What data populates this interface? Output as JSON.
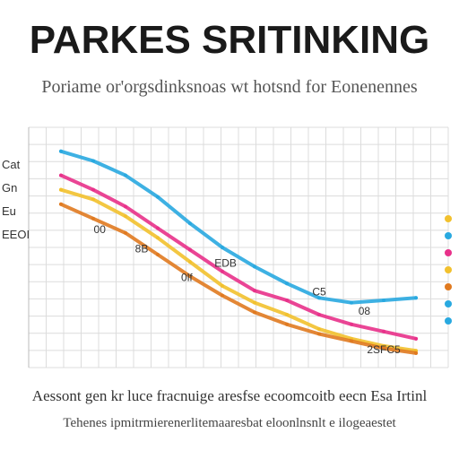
{
  "title": "PARKES SRITINKING",
  "subtitle": "Poriame or'orgsdinksnoas wt hotsnd for Eonenennes",
  "footer": {
    "line1": "Aessont gen kr luce fracnuige aresfse ecoomcoitb eecn Esa Irtinl",
    "line2": "Tehenes ipmitrmierenerlitemaaresbat eloonlnsnlt e ilogeaestet"
  },
  "chart_data": {
    "type": "line",
    "x": [
      1,
      2,
      3,
      4,
      5,
      6,
      7,
      8,
      9,
      10,
      11,
      12
    ],
    "xlim": [
      0,
      13
    ],
    "ylim": [
      0,
      100
    ],
    "grid": true,
    "legend_position": "right",
    "ylabels": [
      "Cat",
      "Gn",
      "Eu",
      "EEOI"
    ],
    "series": [
      {
        "color": "#29a9e0",
        "values": [
          90,
          86,
          80,
          71,
          60,
          50,
          42,
          35,
          29,
          27,
          28,
          29
        ]
      },
      {
        "color": "#e8318a",
        "values": [
          80,
          74,
          67,
          58,
          49,
          40,
          32,
          28,
          22,
          18,
          15,
          12
        ]
      },
      {
        "color": "#f2c12e",
        "values": [
          74,
          70,
          63,
          54,
          44,
          34,
          27,
          22,
          16,
          12,
          9,
          7
        ]
      },
      {
        "color": "#e07a20",
        "values": [
          68,
          62,
          56,
          47,
          38,
          30,
          23,
          18,
          14,
          11,
          8,
          6
        ]
      }
    ],
    "annotations": [
      "00",
      "8B",
      "0lf",
      "EDB",
      "C5",
      "08",
      "2SFC5"
    ],
    "legend_dot_colors": [
      "#f2c12e",
      "#29a9e0",
      "#e8318a",
      "#f2c12e",
      "#e07a20",
      "#29a9e0",
      "#29a9e0"
    ]
  }
}
